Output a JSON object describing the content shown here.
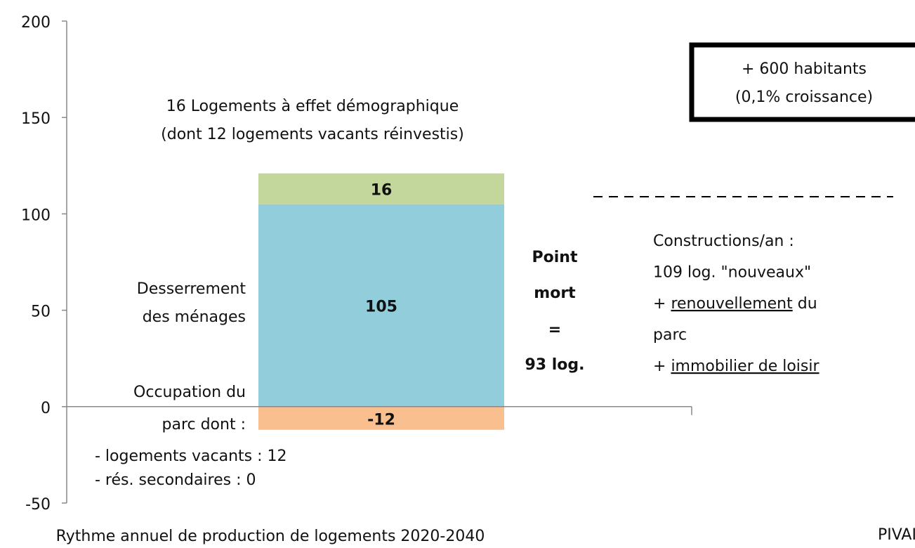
{
  "chart_data": {
    "type": "stacked_bar",
    "title": "Rythme annuel de production de logements 2020-2040",
    "categories": [
      null
    ],
    "series": [
      {
        "color": "#f9bf8f",
        "values": [
          -12
        ]
      },
      {
        "color": "#92cddc",
        "values": [
          105
        ]
      },
      {
        "color": "#c3d69b",
        "values": [
          16
        ]
      }
    ],
    "ylim": [
      -50,
      200
    ],
    "yticks": [
      -50,
      0,
      50,
      100,
      150,
      200
    ],
    "annotations": {
      "occupation": [
        "Occupation du",
        "parc dont :"
      ],
      "occupation_detail": [
        "- logements vacants : 12",
        "- rés. secondaires : 0"
      ],
      "desserrement": [
        "Desserrement",
        "des ménages"
      ],
      "demographique": [
        "16 Logements à effet démographique",
        "(dont 12 logements vacants réinvestis)"
      ],
      "point_mort": [
        "Point",
        "mort",
        "=",
        "93 log."
      ],
      "habitants": [
        "+ 600 habitants",
        "(0,1% croissance)"
      ],
      "constructions": [
        [
          {
            "text": "Constructions/an :"
          }
        ],
        [
          {
            "text": "109 log. \"nouveaux\""
          }
        ],
        [
          {
            "text": "+ "
          },
          {
            "text": "renouvellement",
            "underline": true
          },
          {
            "text": " du"
          }
        ],
        [
          {
            "text": "parc"
          }
        ],
        [
          {
            "text": "+ "
          },
          {
            "text": "immobilier de loisir",
            "underline": true
          }
        ]
      ],
      "source": "PIVAI"
    }
  }
}
